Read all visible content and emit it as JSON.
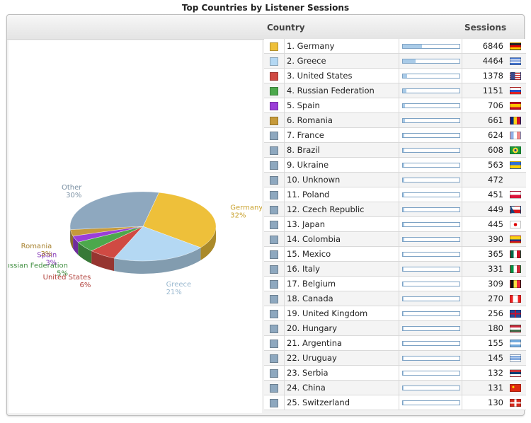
{
  "title": "Top Countries by Listener Sessions",
  "header": {
    "country": "Country",
    "sessions": "Sessions"
  },
  "rows": [
    {
      "label": "1. Germany",
      "value": 6846,
      "color": "#eec03a",
      "flag": "germany-flag-icon"
    },
    {
      "label": "2. Greece",
      "value": 4464,
      "color": "#b4d8f3",
      "flag": "greece-flag-icon"
    },
    {
      "label": "3. United States",
      "value": 1378,
      "color": "#d04a43",
      "flag": "usa-flag-icon"
    },
    {
      "label": "4. Russian Federation",
      "value": 1151,
      "color": "#4ca84c",
      "flag": "russia-flag-icon"
    },
    {
      "label": "5. Spain",
      "value": 706,
      "color": "#9b3ed8",
      "flag": "spain-flag-icon"
    },
    {
      "label": "6. Romania",
      "value": 661,
      "color": "#c69a3a",
      "flag": "romania-flag-icon"
    },
    {
      "label": "7. France",
      "value": 624,
      "color": "#8ea8bf",
      "flag": "france-flag-icon"
    },
    {
      "label": "8. Brazil",
      "value": 608,
      "color": "#8ea8bf",
      "flag": "brazil-flag-icon"
    },
    {
      "label": "9. Ukraine",
      "value": 563,
      "color": "#8ea8bf",
      "flag": "ukraine-flag-icon"
    },
    {
      "label": "10. Unknown",
      "value": 472,
      "color": "#8ea8bf",
      "flag": ""
    },
    {
      "label": "11. Poland",
      "value": 451,
      "color": "#8ea8bf",
      "flag": "poland-flag-icon"
    },
    {
      "label": "12. Czech Republic",
      "value": 449,
      "color": "#8ea8bf",
      "flag": "czech-flag-icon"
    },
    {
      "label": "13. Japan",
      "value": 445,
      "color": "#8ea8bf",
      "flag": "japan-flag-icon"
    },
    {
      "label": "14. Colombia",
      "value": 390,
      "color": "#8ea8bf",
      "flag": "colombia-flag-icon"
    },
    {
      "label": "15. Mexico",
      "value": 365,
      "color": "#8ea8bf",
      "flag": "mexico-flag-icon"
    },
    {
      "label": "16. Italy",
      "value": 331,
      "color": "#8ea8bf",
      "flag": "italy-flag-icon"
    },
    {
      "label": "17. Belgium",
      "value": 309,
      "color": "#8ea8bf",
      "flag": "belgium-flag-icon"
    },
    {
      "label": "18. Canada",
      "value": 270,
      "color": "#8ea8bf",
      "flag": "canada-flag-icon"
    },
    {
      "label": "19. United Kingdom",
      "value": 256,
      "color": "#8ea8bf",
      "flag": "uk-flag-icon"
    },
    {
      "label": "20. Hungary",
      "value": 180,
      "color": "#8ea8bf",
      "flag": "hungary-flag-icon"
    },
    {
      "label": "21. Argentina",
      "value": 155,
      "color": "#8ea8bf",
      "flag": "argentina-flag-icon"
    },
    {
      "label": "22. Uruguay",
      "value": 145,
      "color": "#8ea8bf",
      "flag": "uruguay-flag-icon"
    },
    {
      "label": "23. Serbia",
      "value": 132,
      "color": "#8ea8bf",
      "flag": "serbia-flag-icon"
    },
    {
      "label": "24. China",
      "value": 131,
      "color": "#8ea8bf",
      "flag": "china-flag-icon"
    },
    {
      "label": "25. Switzerland",
      "value": 130,
      "color": "#8ea8bf",
      "flag": "switzerland-flag-icon"
    }
  ],
  "bar_scale_max": 20000,
  "chart_data": {
    "type": "pie",
    "title": "Top Countries by Listener Sessions",
    "slices": [
      {
        "label": "Germany",
        "percent": "32%",
        "value": 32,
        "color": "#eec03a"
      },
      {
        "label": "Greece",
        "percent": "21%",
        "value": 21,
        "color": "#b4d8f3"
      },
      {
        "label": "United States",
        "percent": "6%",
        "value": 6,
        "color": "#d04a43"
      },
      {
        "label": "Russian Federation",
        "percent": "5%",
        "value": 5,
        "color": "#4ca84c"
      },
      {
        "label": "Spain",
        "percent": "3%",
        "value": 3,
        "color": "#9b3ed8"
      },
      {
        "label": "Romania",
        "percent": "3%",
        "value": 3,
        "color": "#c69a3a"
      },
      {
        "label": "Other",
        "percent": "30%",
        "value": 30,
        "color": "#8ea8bf"
      }
    ]
  }
}
